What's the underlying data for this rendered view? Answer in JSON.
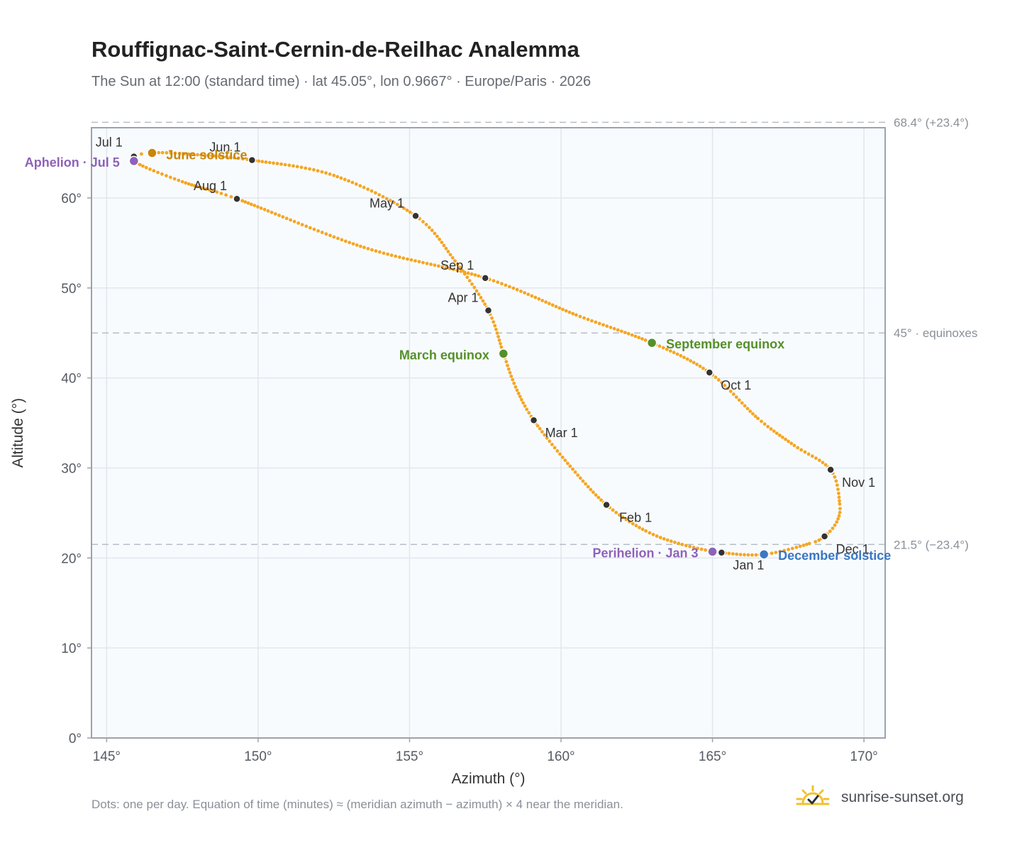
{
  "header": {
    "title": "Rouffignac-Saint-Cernin-de-Reilhac Analemma",
    "subtitle": "The Sun at 12:00 (standard time) · lat 45.05°, lon 0.9667° · Europe/Paris · 2026"
  },
  "footer": {
    "note": "Dots: one per day. Equation of time (minutes) ≈ (meridian azimuth − azimuth) × 4 near the meridian.",
    "brand": "sunrise-sunset.org"
  },
  "colors": {
    "curve": "#f5a623",
    "month_marker": "#333333",
    "june_solstice": "#c8860a",
    "december_solstice": "#3a78c4",
    "equinox": "#55902a",
    "apsis": "#8e62b8",
    "reference_line": "#b6bec6",
    "plot_background": "#f8fbfe"
  },
  "chart_data": {
    "type": "scatter",
    "xlabel": "Azimuth (°)",
    "ylabel": "Altitude (°)",
    "xlim": [
      144.5,
      170.7
    ],
    "ylim": [
      0,
      67.8
    ],
    "x_ticks": [
      145,
      150,
      155,
      160,
      165,
      170
    ],
    "x_tick_labels": [
      "145°",
      "150°",
      "155°",
      "160°",
      "165°",
      "170°"
    ],
    "y_ticks": [
      0,
      10,
      20,
      30,
      40,
      50,
      60
    ],
    "y_tick_labels": [
      "0°",
      "10°",
      "20°",
      "30°",
      "40°",
      "50°",
      "60°"
    ],
    "grid": true,
    "reference_lines": [
      {
        "y": 68.4,
        "label": "68.4° (+23.4°)"
      },
      {
        "y": 45.0,
        "label": "45° · equinoxes"
      },
      {
        "y": 21.5,
        "label": "21.5° (−23.4°)"
      }
    ],
    "series": [
      {
        "daily_points": "one per day",
        "points": [
          [
            166.7,
            20.4
          ],
          [
            168.2,
            21.6
          ],
          [
            168.7,
            22.4
          ],
          [
            169.1,
            24.0
          ],
          [
            169.2,
            26.0
          ],
          [
            168.9,
            29.8
          ],
          [
            167.7,
            32.5
          ],
          [
            166.5,
            35.5
          ],
          [
            164.9,
            40.6
          ],
          [
            163.0,
            43.9
          ],
          [
            160.5,
            47.0
          ],
          [
            157.5,
            51.1
          ],
          [
            153.5,
            54.5
          ],
          [
            149.3,
            59.9
          ],
          [
            147.5,
            61.8
          ],
          [
            145.9,
            64.1
          ],
          [
            146.4,
            65.0
          ],
          [
            148.0,
            64.8
          ],
          [
            149.8,
            64.2
          ],
          [
            152.5,
            62.5
          ],
          [
            155.2,
            58.0
          ],
          [
            156.5,
            53.0
          ],
          [
            157.6,
            47.5
          ],
          [
            158.1,
            42.7
          ],
          [
            158.5,
            39.0
          ],
          [
            159.1,
            35.3
          ],
          [
            160.3,
            30.2
          ],
          [
            161.5,
            25.9
          ],
          [
            162.8,
            23.0
          ],
          [
            164.0,
            21.5
          ],
          [
            165.3,
            20.6
          ],
          [
            166.7,
            20.4
          ]
        ]
      }
    ],
    "month_markers": [
      {
        "label": "Jan 1",
        "x": 165.3,
        "y": 20.6
      },
      {
        "label": "Feb 1",
        "x": 161.5,
        "y": 25.9
      },
      {
        "label": "Mar 1",
        "x": 159.1,
        "y": 35.3
      },
      {
        "label": "Apr 1",
        "x": 157.6,
        "y": 47.5
      },
      {
        "label": "May 1",
        "x": 155.2,
        "y": 58.0
      },
      {
        "label": "Jun 1",
        "x": 149.8,
        "y": 64.2
      },
      {
        "label": "Jul 1",
        "x": 145.9,
        "y": 64.6
      },
      {
        "label": "Aug 1",
        "x": 149.3,
        "y": 59.9
      },
      {
        "label": "Sep 1",
        "x": 157.5,
        "y": 51.1
      },
      {
        "label": "Oct 1",
        "x": 164.9,
        "y": 40.6
      },
      {
        "label": "Nov 1",
        "x": 168.9,
        "y": 29.8
      },
      {
        "label": "Dec 1",
        "x": 168.7,
        "y": 22.4
      }
    ],
    "events": [
      {
        "label": "June solstice",
        "x": 146.5,
        "y": 65.0,
        "kind": "june_solstice"
      },
      {
        "label": "December solstice",
        "x": 166.7,
        "y": 20.4,
        "kind": "december_solstice"
      },
      {
        "label": "March equinox",
        "x": 158.1,
        "y": 42.7,
        "kind": "equinox"
      },
      {
        "label": "September equinox",
        "x": 163.0,
        "y": 43.9,
        "kind": "equinox"
      },
      {
        "label": "Aphelion · Jul 5",
        "x": 145.9,
        "y": 64.1,
        "kind": "apsis"
      },
      {
        "label": "Perihelion · Jan 3",
        "x": 165.0,
        "y": 20.7,
        "kind": "apsis"
      }
    ]
  }
}
